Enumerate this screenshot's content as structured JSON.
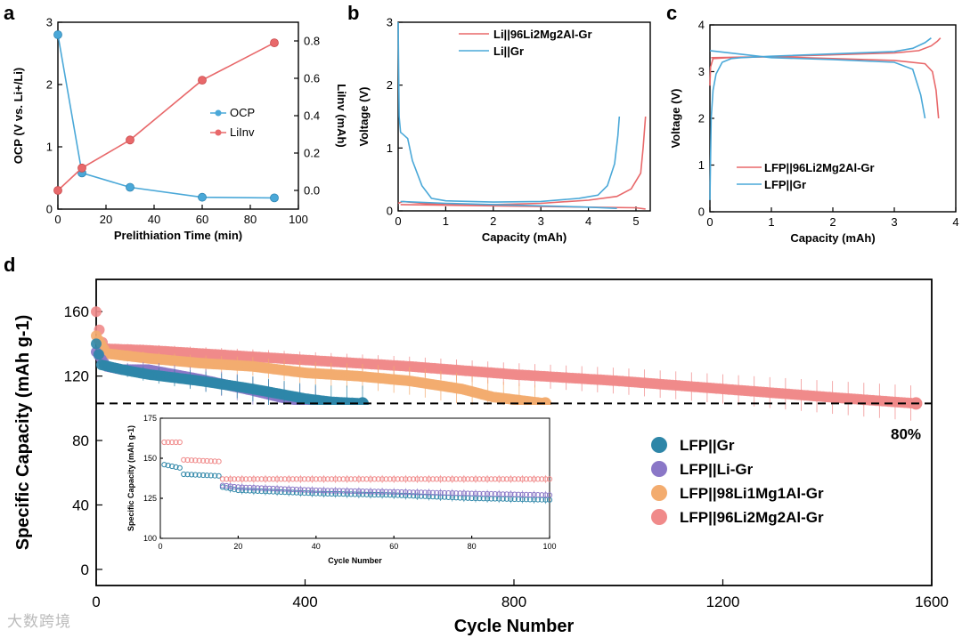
{
  "panel_letters": [
    "a",
    "b",
    "c",
    "d"
  ],
  "watermark": "大数跨境",
  "colors": {
    "blue": "#4aa8d8",
    "red": "#e8686a",
    "teal": "#2e86a8",
    "purple": "#8a77c7",
    "orange": "#f3ac6f",
    "pink": "#f08a8a",
    "axis": "#000000"
  },
  "chart_data": [
    {
      "type": "line",
      "panel": "a",
      "xlabel": "Prelithiation Time (min)",
      "ylabel": "OCP (V vs. Li+/Li)",
      "ylabel_right": "LiInv (mAh)",
      "xlim": [
        0,
        100
      ],
      "ylim": [
        0,
        3
      ],
      "ylim_right": [
        -0.1,
        0.9
      ],
      "xticks": [
        "0",
        "20",
        "40",
        "60",
        "80",
        "100"
      ],
      "yticks": [
        "0",
        "1",
        "2",
        "3"
      ],
      "yticks_right": [
        "0.0",
        "0.2",
        "0.4",
        "0.6",
        "0.8"
      ],
      "legend_position": "right-center",
      "series": [
        {
          "name": "OCP",
          "axis": "left",
          "x": [
            0,
            10,
            30,
            60,
            90
          ],
          "y": [
            2.8,
            0.58,
            0.35,
            0.19,
            0.18
          ]
        },
        {
          "name": "LiInv",
          "axis": "right",
          "x": [
            0,
            10,
            30,
            60,
            90
          ],
          "y": [
            0.0,
            0.12,
            0.27,
            0.59,
            0.79
          ]
        }
      ]
    },
    {
      "type": "line",
      "panel": "b",
      "xlabel": "Capacity (mAh)",
      "ylabel": "Voltage (V)",
      "xlim": [
        0,
        5.3
      ],
      "ylim": [
        0,
        3
      ],
      "xticks": [
        "0",
        "1",
        "2",
        "3",
        "4",
        "5"
      ],
      "yticks": [
        "0",
        "1",
        "2",
        "3"
      ],
      "legend_position": "top-right",
      "series": [
        {
          "name": "Li||96Li2Mg2Al-Gr",
          "color": "red",
          "x": [
            0,
            0.1,
            0.5,
            1,
            2,
            3,
            4,
            4.6,
            4.9,
            5.1,
            5.15,
            5.2
          ],
          "y": [
            0.12,
            0.15,
            0.12,
            0.1,
            0.1,
            0.12,
            0.17,
            0.23,
            0.35,
            0.6,
            1.0,
            1.5
          ],
          "x2": [
            0.05,
            1,
            2,
            3,
            4,
            5,
            5.2
          ],
          "y2": [
            0.1,
            0.09,
            0.08,
            0.07,
            0.06,
            0.05,
            0.03
          ]
        },
        {
          "name": "Li||Gr",
          "color": "blue",
          "x": [
            0,
            0.02,
            0.05,
            0.1,
            0.2,
            0.3,
            0.5,
            0.7,
            1,
            2,
            3,
            3.8,
            4.2,
            4.4,
            4.55,
            4.62,
            4.65
          ],
          "y": [
            3.0,
            1.5,
            1.25,
            1.22,
            1.15,
            0.8,
            0.4,
            0.2,
            0.16,
            0.14,
            0.15,
            0.2,
            0.25,
            0.4,
            0.75,
            1.2,
            1.5
          ],
          "x2": [
            0.05,
            1,
            2,
            3,
            4,
            4.6
          ],
          "y2": [
            0.15,
            0.12,
            0.1,
            0.08,
            0.06,
            0.04
          ]
        }
      ]
    },
    {
      "type": "line",
      "panel": "c",
      "xlabel": "Capacity (mAh)",
      "ylabel": "Voltage (V)",
      "xlim": [
        0,
        4
      ],
      "ylim": [
        0,
        4
      ],
      "xticks": [
        "0",
        "1",
        "2",
        "3",
        "4"
      ],
      "yticks": [
        "0",
        "1",
        "2",
        "3",
        "4"
      ],
      "legend_position": "bottom-right",
      "series": [
        {
          "name": "LFP||96Li2Mg2Al-Gr",
          "color": "red",
          "x": [
            0,
            0.01,
            0.05,
            0.3,
            1,
            2,
            3,
            3.4,
            3.6,
            3.7,
            3.75
          ],
          "y": [
            2.7,
            3.1,
            3.28,
            3.3,
            3.32,
            3.36,
            3.4,
            3.45,
            3.55,
            3.65,
            3.72
          ],
          "x2": [
            0.02,
            1,
            2,
            3,
            3.5,
            3.62,
            3.68,
            3.72
          ],
          "y2": [
            3.3,
            3.32,
            3.28,
            3.24,
            3.17,
            3.0,
            2.6,
            2.0
          ]
        },
        {
          "name": "LFP||Gr",
          "color": "blue",
          "x": [
            0.0,
            0.02,
            0.05,
            0.1,
            0.2,
            0.35,
            0.5,
            1,
            2,
            3,
            3.3,
            3.5,
            3.6
          ],
          "y": [
            0.25,
            2.0,
            2.6,
            2.95,
            3.2,
            3.28,
            3.3,
            3.33,
            3.38,
            3.43,
            3.5,
            3.62,
            3.72
          ],
          "x2": [
            0.0,
            1,
            2,
            3,
            3.3,
            3.43,
            3.5
          ],
          "y2": [
            3.45,
            3.3,
            3.26,
            3.2,
            3.05,
            2.5,
            2.0
          ]
        }
      ]
    },
    {
      "type": "scatter",
      "panel": "d",
      "xlabel": "Cycle Number",
      "ylabel": "Specific Capacity (mAh g-1)",
      "xlim": [
        0,
        1600
      ],
      "ylim": [
        -10,
        180
      ],
      "xticks": [
        "0",
        "400",
        "800",
        "1200",
        "1600"
      ],
      "yticks": [
        "0",
        "40",
        "80",
        "120",
        "160"
      ],
      "reference_line": {
        "y": 103,
        "label": "80%"
      },
      "legend_position": "right-center",
      "series": [
        {
          "name": "LFP||Gr",
          "color": "teal",
          "x": [
            0,
            10,
            50,
            100,
            200,
            300,
            400,
            450,
            510
          ],
          "y": [
            140,
            127,
            124,
            121,
            117,
            112,
            106,
            104,
            103
          ]
        },
        {
          "name": "LFP||Li-Gr",
          "color": "purple",
          "x": [
            0,
            20,
            50,
            100,
            200,
            300,
            350,
            420
          ],
          "y": [
            135,
            126,
            124,
            124,
            118,
            111,
            107,
            103
          ]
        },
        {
          "name": "LFP||98Li1Mg1Al-Gr",
          "color": "orange",
          "x": [
            0,
            20,
            100,
            200,
            300,
            400,
            500,
            600,
            700,
            760,
            860
          ],
          "y": [
            145,
            134,
            131,
            128,
            126,
            122,
            120,
            117,
            112,
            107,
            103
          ]
        },
        {
          "name": "LFP||96Li2Mg2Al-Gr",
          "color": "pink",
          "x": [
            0,
            5,
            15,
            100,
            200,
            400,
            600,
            800,
            1000,
            1200,
            1400,
            1570
          ],
          "y": [
            160,
            150,
            137,
            136,
            134,
            130,
            126,
            121,
            117,
            112,
            107,
            103
          ]
        }
      ]
    },
    {
      "type": "scatter",
      "panel": "d-inset",
      "xlabel": "Cycle Number",
      "ylabel": "Specific Capacity (mAh g-1)",
      "xlim": [
        0,
        100
      ],
      "ylim": [
        100,
        175
      ],
      "xticks": [
        "0",
        "20",
        "40",
        "60",
        "80",
        "100"
      ],
      "yticks": [
        "100",
        "125",
        "150",
        "175"
      ],
      "series": [
        {
          "name": "LFP||Gr",
          "color": "teal",
          "x": [
            1,
            5,
            6,
            15,
            16,
            20,
            40,
            60,
            80,
            100
          ],
          "y": [
            146,
            144,
            140,
            139,
            132,
            130,
            128,
            127,
            125,
            124
          ]
        },
        {
          "name": "LFP||Li-Gr",
          "color": "purple",
          "x": [
            16,
            20,
            40,
            60,
            80,
            100
          ],
          "y": [
            133,
            132,
            130,
            129,
            128,
            127
          ]
        },
        {
          "name": "LFP||96Li2Mg2Al-Gr",
          "color": "pink",
          "x": [
            1,
            5,
            6,
            15,
            16,
            20,
            40,
            60,
            80,
            100
          ],
          "y": [
            160,
            160,
            149,
            148,
            137,
            137,
            137,
            137,
            137,
            137
          ]
        }
      ]
    }
  ]
}
